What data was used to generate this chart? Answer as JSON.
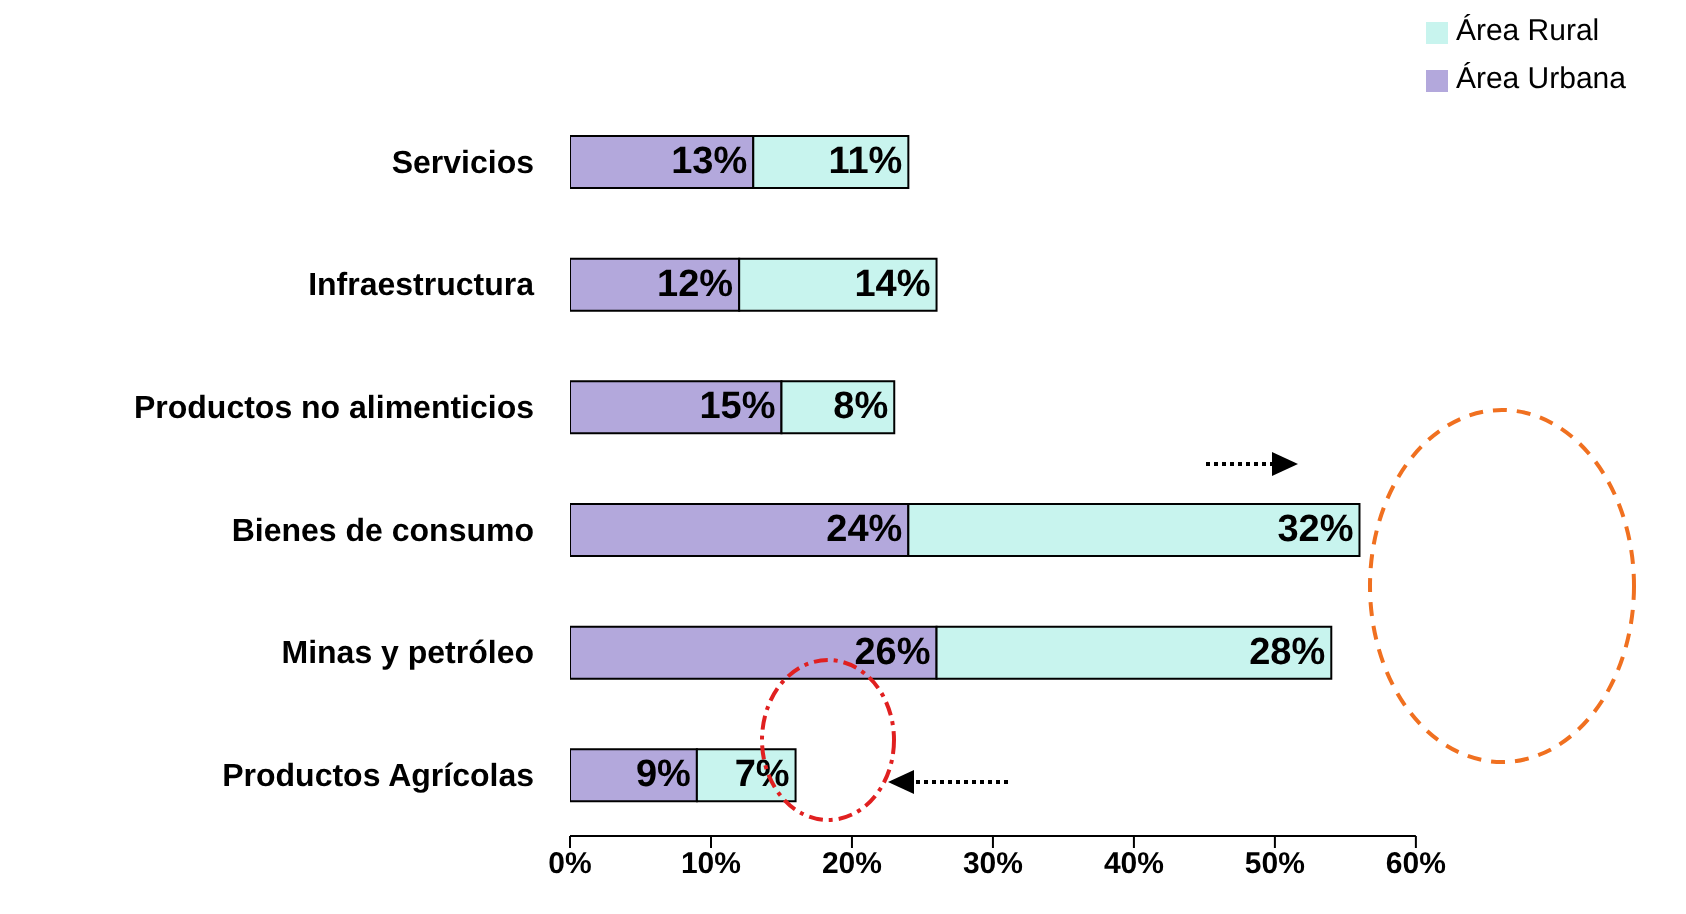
{
  "chart_data": {
    "type": "bar",
    "orientation": "horizontal",
    "stacked": true,
    "categories": [
      "Servicios",
      "Infraestructura",
      "Productos no alimenticios",
      "Bienes de consumo",
      "Minas y petróleo",
      "Productos Agrícolas"
    ],
    "series": [
      {
        "name": "Área Urbana",
        "color": "#b3a8dc",
        "values": [
          13,
          12,
          15,
          24,
          26,
          9
        ],
        "value_labels": [
          "13%",
          "12%",
          "15%",
          "24%",
          "26%",
          "9%"
        ]
      },
      {
        "name": "Área Rural",
        "color": "#c8f4ee",
        "values": [
          11,
          14,
          8,
          32,
          28,
          7
        ],
        "value_labels": [
          "11%",
          "14%",
          "8%",
          "32%",
          "28%",
          "7%"
        ]
      }
    ],
    "xlim": [
      0,
      60
    ],
    "xticks": [
      {
        "value": 0,
        "label": "0%"
      },
      {
        "value": 10,
        "label": "10%"
      },
      {
        "value": 20,
        "label": "20%"
      },
      {
        "value": 30,
        "label": "30%"
      },
      {
        "value": 40,
        "label": "40%"
      },
      {
        "value": 50,
        "label": "50%"
      },
      {
        "value": 60,
        "label": "60%"
      }
    ],
    "legend": "top right",
    "grid": false
  }
}
